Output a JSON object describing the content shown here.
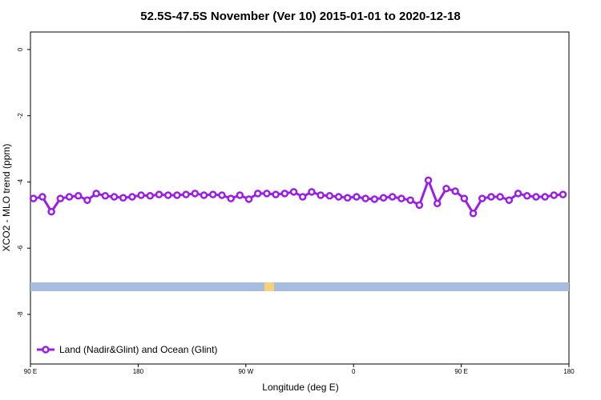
{
  "chart_data": {
    "type": "line",
    "title": "52.5S-47.5S November (Ver 10)   2015-01-01 to 2020-12-18",
    "x_label": "Longitude (deg E)",
    "y_label": "XCO2 - MLO trend (ppm)",
    "xlim": [
      90,
      540
    ],
    "xticks": [
      {
        "value": 90,
        "label": "90 E"
      },
      {
        "value": 180,
        "label": "180"
      },
      {
        "value": 270,
        "label": "90 W"
      },
      {
        "value": 360,
        "label": "0"
      },
      {
        "value": 450,
        "label": "90 E"
      },
      {
        "value": 540,
        "label": "180"
      }
    ],
    "ylim": [
      -9.5,
      0.53
    ],
    "yticks": [
      0,
      -2,
      -4,
      -6,
      -8
    ],
    "x": [
      92.5,
      100,
      107.5,
      115,
      122.5,
      130,
      137.5,
      145,
      152.5,
      160,
      167.5,
      175,
      182.5,
      190,
      197.5,
      205,
      212.5,
      220,
      227.5,
      235,
      242.5,
      250,
      257.5,
      265,
      272.5,
      280,
      287.5,
      295,
      302.5,
      310,
      317.5,
      325,
      332.5,
      340,
      347.5,
      355,
      362.5,
      370,
      377.5,
      385,
      392.5,
      400,
      407.5,
      415,
      422.5,
      430,
      437.5,
      445,
      452.5,
      460,
      467.5,
      475,
      482.5,
      490,
      497.5,
      505,
      512.5,
      520,
      527.5,
      535
    ],
    "series": [
      {
        "name": "Land (Nadir&Glint) and Ocean (Glint)",
        "color": "#9b1ee6",
        "values": [
          -4.5,
          -4.45,
          -4.9,
          -4.5,
          -4.45,
          -4.42,
          -4.55,
          -4.35,
          -4.42,
          -4.45,
          -4.48,
          -4.45,
          -4.4,
          -4.42,
          -4.38,
          -4.4,
          -4.4,
          -4.38,
          -4.35,
          -4.4,
          -4.38,
          -4.4,
          -4.5,
          -4.4,
          -4.52,
          -4.35,
          -4.35,
          -4.38,
          -4.35,
          -4.3,
          -4.45,
          -4.3,
          -4.4,
          -4.42,
          -4.45,
          -4.48,
          -4.45,
          -4.5,
          -4.52,
          -4.48,
          -4.45,
          -4.5,
          -4.55,
          -4.7,
          -3.95,
          -4.65,
          -4.2,
          -4.28,
          -4.5,
          -4.95,
          -4.5,
          -4.45,
          -4.45,
          -4.55,
          -4.35,
          -4.42,
          -4.45,
          -4.45,
          -4.4,
          -4.38
        ]
      }
    ],
    "legend_position": "lower left"
  }
}
